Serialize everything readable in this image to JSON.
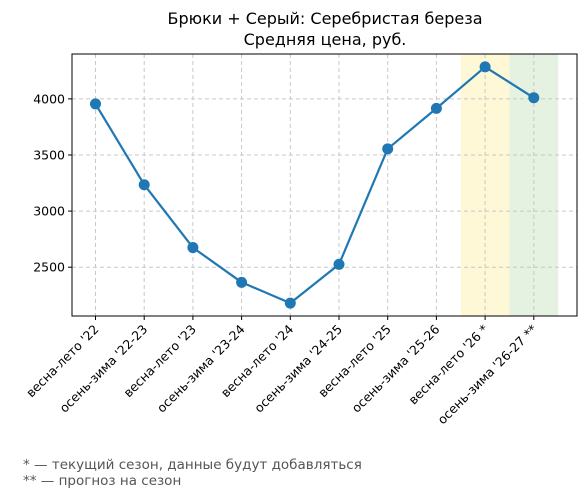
{
  "chart_data": {
    "type": "line",
    "title": "Брюки + Серый: Серебристая береза",
    "subtitle": "Средняя цена, руб.",
    "xlabel": "",
    "ylabel": "",
    "categories": [
      "весна-лето '22",
      "осень-зима '22-23",
      "весна-лето '23",
      "осень-зима '23-24",
      "весна-лето '24",
      "осень-зима '24-25",
      "весна-лето '25",
      "осень-зима '25-26",
      "весна-лето '26 *",
      "осень-зима '26-27 **"
    ],
    "values": [
      3955,
      3235,
      2675,
      2365,
      2180,
      2525,
      3555,
      3915,
      4285,
      4010
    ],
    "yticks": [
      2500,
      3000,
      3500,
      4000
    ],
    "ylim": [
      2065,
      4400
    ],
    "grid": true,
    "line_color": "#1f77b4",
    "highlights": [
      {
        "category": "весна-лето '26 *",
        "color": "#fff8d6",
        "meaning": "current season"
      },
      {
        "category": "осень-зима '26-27 **",
        "color": "#e5f1e1",
        "meaning": "forecast"
      }
    ]
  },
  "footnotes": {
    "current": "* — текущий сезон, данные будут добавляться",
    "forecast": "** — прогноз на сезон"
  }
}
